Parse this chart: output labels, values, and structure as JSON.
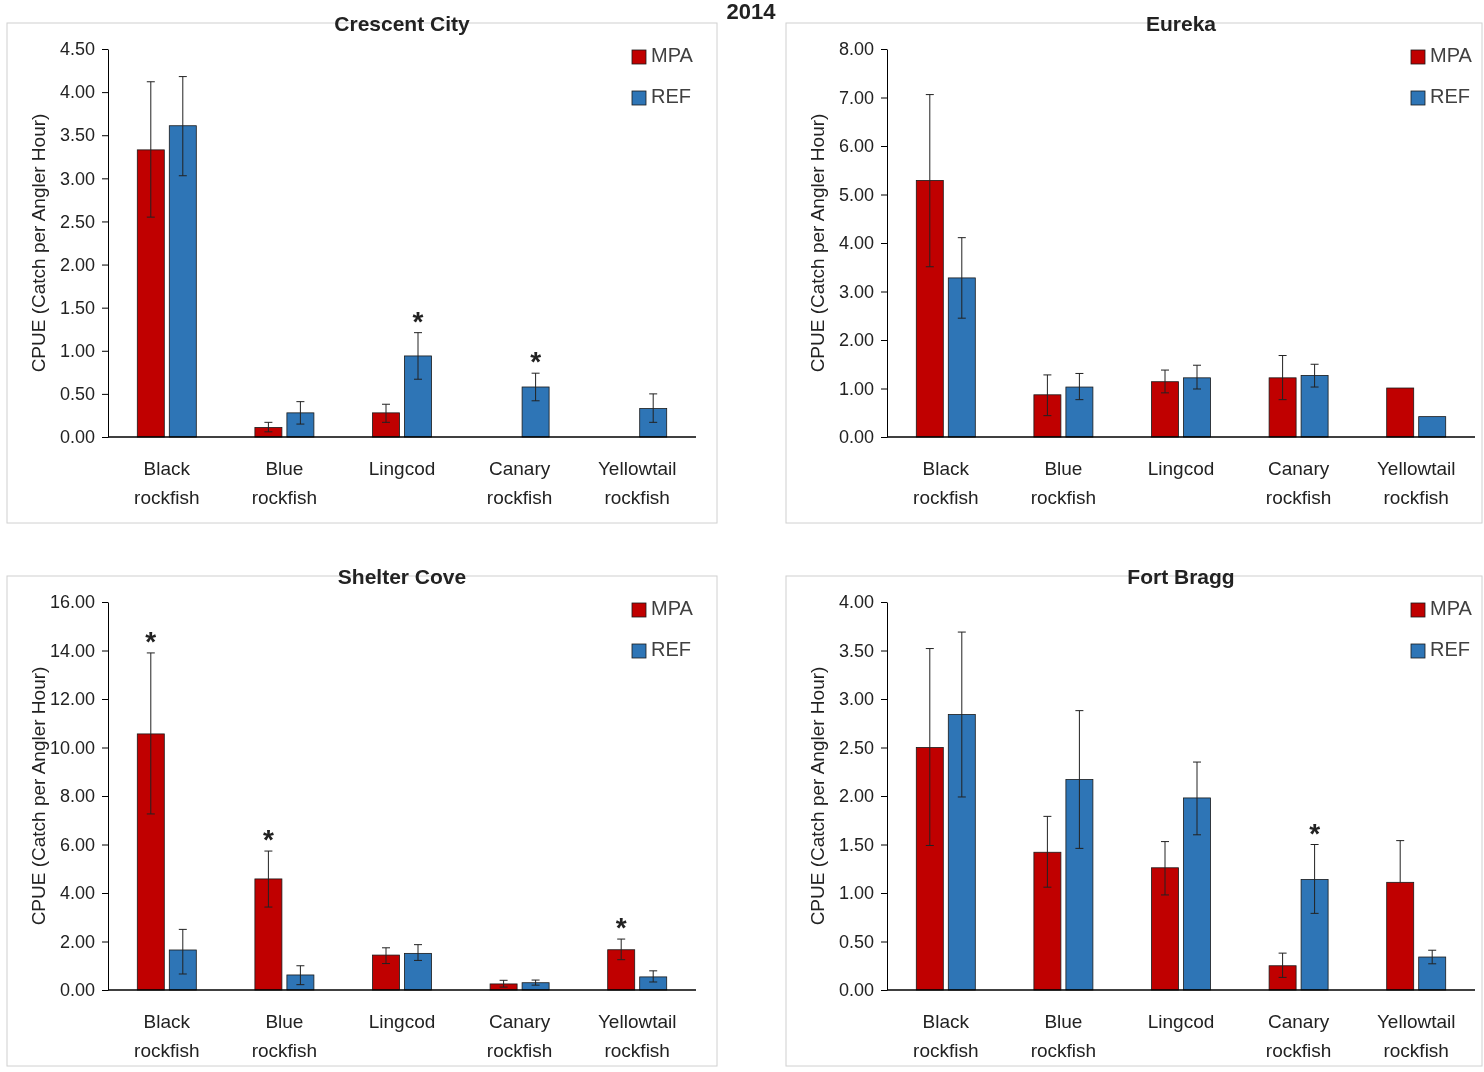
{
  "chart_data": [
    {
      "type": "bar",
      "title": "Crescent City",
      "ylabel": "CPUE (Catch per Angler Hour)",
      "annotations": [
        "2014",
        {
          "text": "*",
          "x": "Lingcod",
          "y": 0.94
        },
        {
          "text": "*",
          "x": "Canary rockfish",
          "y": 0.58
        }
      ],
      "categories": [
        "Black rockfish",
        "Blue rockfish",
        "Lingcod",
        "Canary rockfish",
        "Yellowtail rockfish"
      ],
      "series": [
        {
          "name": "MPA",
          "color": "#c00000",
          "values": [
            3.33,
            0.11,
            0.28,
            null,
            null
          ],
          "errors": [
            [
              2.55,
              4.12
            ],
            [
              0.06,
              0.17
            ],
            [
              0.17,
              0.38
            ],
            null,
            null
          ]
        },
        {
          "name": "REF",
          "color": "#2e75b6",
          "values": [
            3.61,
            0.28,
            0.94,
            0.58,
            0.33
          ],
          "errors": [
            [
              3.03,
              4.18
            ],
            [
              0.15,
              0.41
            ],
            [
              0.67,
              1.21
            ],
            [
              0.42,
              0.74
            ],
            [
              0.17,
              0.5
            ]
          ]
        }
      ],
      "ylim": [
        0,
        4.5
      ],
      "yticks": [
        {
          "value": 0,
          "label": "0.00"
        },
        {
          "value": 0.5,
          "label": "0.50"
        },
        {
          "value": 1,
          "label": "1.00"
        },
        {
          "value": 1.5,
          "label": "1.50"
        },
        {
          "value": 2,
          "label": "2.00"
        },
        {
          "value": 2.5,
          "label": "2.50"
        },
        {
          "value": 3,
          "label": "3.00"
        },
        {
          "value": 3.5,
          "label": "3.50"
        },
        {
          "value": 4,
          "label": "4.00"
        },
        {
          "value": 4.5,
          "label": "4.50"
        }
      ],
      "legend": "top right",
      "grid": false
    },
    {
      "type": "bar",
      "title": "Eureka",
      "ylabel": "CPUE (Catch per Angler Hour)",
      "categories": [
        "Black rockfish",
        "Blue rockfish",
        "Lingcod",
        "Canary rockfish",
        "Yellowtail rockfish"
      ],
      "series": [
        {
          "name": "MPA",
          "color": "#c00000",
          "values": [
            5.29,
            0.87,
            1.14,
            1.22,
            1.01
          ],
          "errors": [
            [
              3.51,
              7.06
            ],
            [
              0.44,
              1.28
            ],
            [
              0.91,
              1.38
            ],
            [
              0.77,
              1.68
            ],
            null
          ]
        },
        {
          "name": "REF",
          "color": "#2e75b6",
          "values": [
            3.28,
            1.03,
            1.22,
            1.27,
            0.42
          ],
          "errors": [
            [
              2.45,
              4.11
            ],
            [
              0.77,
              1.31
            ],
            [
              0.99,
              1.48
            ],
            [
              1.03,
              1.5
            ],
            null
          ]
        }
      ],
      "ylim": [
        0,
        8
      ],
      "yticks": [
        {
          "value": 0,
          "label": "0.00"
        },
        {
          "value": 1,
          "label": "1.00"
        },
        {
          "value": 2,
          "label": "2.00"
        },
        {
          "value": 3,
          "label": "3.00"
        },
        {
          "value": 4,
          "label": "4.00"
        },
        {
          "value": 5,
          "label": "5.00"
        },
        {
          "value": 6,
          "label": "6.00"
        },
        {
          "value": 7,
          "label": "7.00"
        },
        {
          "value": 8,
          "label": "8.00"
        }
      ],
      "legend": "top right",
      "grid": false
    },
    {
      "type": "bar",
      "title": "Shelter Cove",
      "ylabel": "CPUE (Catch per Angler Hour)",
      "annotations": [
        {
          "text": "*",
          "x": "Black rockfish",
          "y": 10.56
        },
        {
          "text": "*",
          "x": "Blue rockfish",
          "y": 4.58
        },
        {
          "text": "*",
          "x": "Yellowtail rockfish",
          "y": 1.66
        }
      ],
      "categories": [
        "Black rockfish",
        "Blue rockfish",
        "Lingcod",
        "Canary rockfish",
        "Yellowtail rockfish"
      ],
      "series": [
        {
          "name": "MPA",
          "color": "#c00000",
          "values": [
            10.56,
            4.58,
            1.44,
            0.25,
            1.66
          ],
          "errors": [
            [
              7.26,
              13.9
            ],
            [
              3.42,
              5.73
            ],
            [
              1.09,
              1.74
            ],
            [
              0.12,
              0.4
            ],
            [
              1.25,
              2.1
            ]
          ]
        },
        {
          "name": "REF",
          "color": "#2e75b6",
          "values": [
            1.65,
            0.62,
            1.51,
            0.3,
            0.54
          ],
          "errors": [
            [
              0.66,
              2.5
            ],
            [
              0.22,
              1.0
            ],
            [
              1.22,
              1.87
            ],
            [
              0.2,
              0.41
            ],
            [
              0.33,
              0.79
            ]
          ]
        }
      ],
      "ylim": [
        0,
        16
      ],
      "yticks": [
        {
          "value": 0,
          "label": "0.00"
        },
        {
          "value": 2,
          "label": "2.00"
        },
        {
          "value": 4,
          "label": "4.00"
        },
        {
          "value": 6,
          "label": "6.00"
        },
        {
          "value": 8,
          "label": "8.00"
        },
        {
          "value": 10,
          "label": "10.00"
        },
        {
          "value": 12,
          "label": "12.00"
        },
        {
          "value": 14,
          "label": "14.00"
        },
        {
          "value": 16,
          "label": "16.00"
        }
      ],
      "legend": "top right",
      "grid": false
    },
    {
      "type": "bar",
      "title": "Fort Bragg",
      "ylabel": "CPUE (Catch per Angler Hour)",
      "annotations": [
        {
          "text": "*",
          "x": "Canary rockfish",
          "y": 1.14
        }
      ],
      "categories": [
        "Black rockfish",
        "Blue rockfish",
        "Lingcod",
        "Canary rockfish",
        "Yellowtail rockfish"
      ],
      "series": [
        {
          "name": "MPA",
          "color": "#c00000",
          "values": [
            2.5,
            1.42,
            1.26,
            0.25,
            1.11
          ],
          "errors": [
            [
              1.49,
              3.52
            ],
            [
              1.06,
              1.79
            ],
            [
              0.98,
              1.53
            ],
            [
              0.13,
              0.38
            ],
            [
              1.11,
              1.54
            ]
          ]
        },
        {
          "name": "REF",
          "color": "#2e75b6",
          "values": [
            2.84,
            2.17,
            1.98,
            1.14,
            0.34
          ],
          "errors": [
            [
              1.99,
              3.69
            ],
            [
              1.46,
              2.88
            ],
            [
              1.6,
              2.35
            ],
            [
              0.79,
              1.5
            ],
            [
              0.27,
              0.41
            ]
          ]
        }
      ],
      "ylim": [
        0,
        4
      ],
      "yticks": [
        {
          "value": 0,
          "label": "0.00"
        },
        {
          "value": 0.5,
          "label": "0.50"
        },
        {
          "value": 1,
          "label": "1.00"
        },
        {
          "value": 1.5,
          "label": "1.50"
        },
        {
          "value": 2,
          "label": "2.00"
        },
        {
          "value": 2.5,
          "label": "2.50"
        },
        {
          "value": 3,
          "label": "3.00"
        },
        {
          "value": 3.5,
          "label": "3.50"
        },
        {
          "value": 4,
          "label": "4.00"
        }
      ],
      "legend": "top right",
      "grid": false
    }
  ]
}
